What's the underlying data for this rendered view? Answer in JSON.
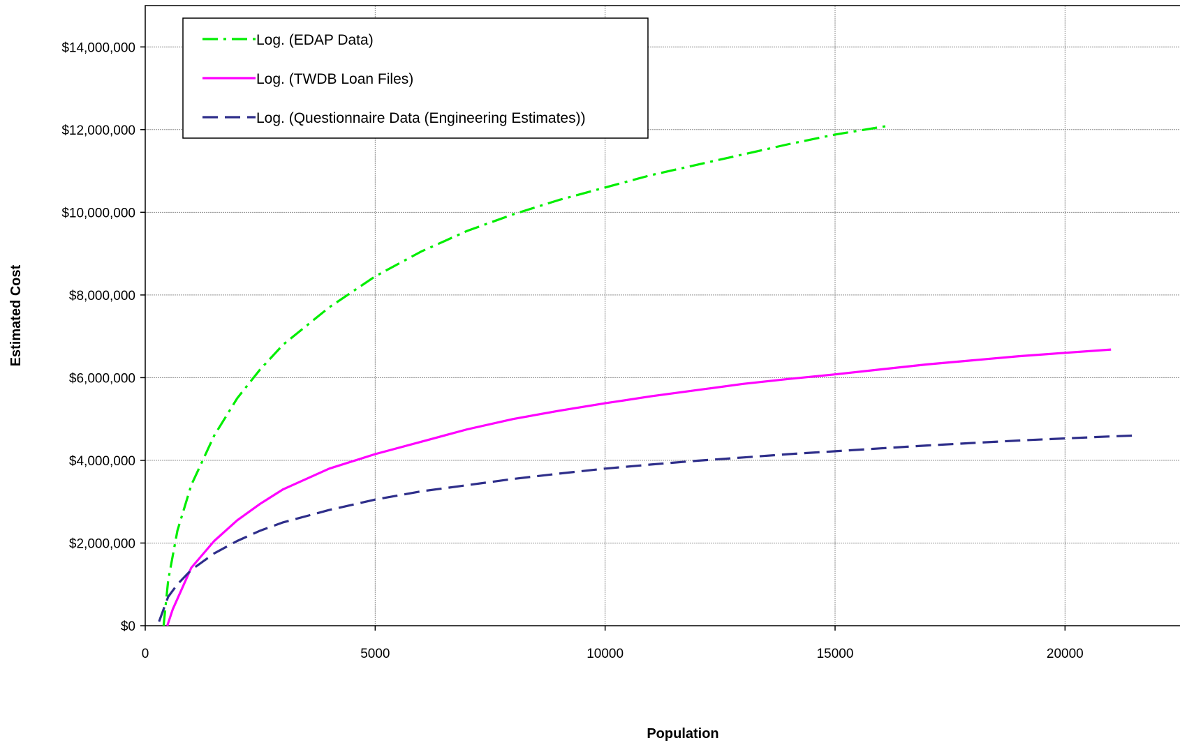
{
  "chart_data": {
    "type": "line",
    "title": "",
    "xlabel": "Population",
    "ylabel": "Estimated Cost",
    "xlim": [
      0,
      22500
    ],
    "ylim": [
      0,
      15000000
    ],
    "x_ticks": [
      0,
      5000,
      10000,
      15000,
      20000
    ],
    "x_tick_labels": [
      "0",
      "5000",
      "10000",
      "15000",
      "20000"
    ],
    "y_ticks": [
      0,
      2000000,
      4000000,
      6000000,
      8000000,
      10000000,
      12000000,
      14000000
    ],
    "y_tick_labels": [
      "$0",
      "$2,000,000",
      "$4,000,000",
      "$6,000,000",
      "$8,000,000",
      "$10,000,000",
      "$12,000,000",
      "$14,000,000"
    ],
    "grid": true,
    "legend_position": "top-left",
    "series": [
      {
        "name": "Log. (EDAP Data)",
        "color": "#00ee00",
        "dash": "dash-dot",
        "x": [
          400,
          500,
          700,
          1000,
          1500,
          2000,
          2500,
          3000,
          4000,
          5000,
          6000,
          7000,
          8000,
          9000,
          10000,
          11000,
          12000,
          13000,
          14000,
          15000,
          16200
        ],
        "y": [
          0,
          1100000,
          2300000,
          3400000,
          4600000,
          5500000,
          6200000,
          6800000,
          7700000,
          8450000,
          9050000,
          9550000,
          9950000,
          10300000,
          10600000,
          10900000,
          11150000,
          11400000,
          11650000,
          11880000,
          12100000
        ]
      },
      {
        "name": "Log. (TWDB Loan Files)",
        "color": "#ff00ff",
        "dash": "solid",
        "x": [
          480,
          600,
          800,
          1000,
          1500,
          2000,
          2500,
          3000,
          4000,
          5000,
          6000,
          7000,
          8000,
          9000,
          10000,
          11000,
          12000,
          13000,
          14000,
          15000,
          16000,
          17000,
          18000,
          19000,
          20000,
          21000
        ],
        "y": [
          0,
          400000,
          900000,
          1400000,
          2050000,
          2550000,
          2950000,
          3300000,
          3800000,
          4150000,
          4450000,
          4750000,
          5000000,
          5200000,
          5380000,
          5550000,
          5700000,
          5850000,
          5970000,
          6080000,
          6200000,
          6320000,
          6420000,
          6520000,
          6600000,
          6680000
        ]
      },
      {
        "name": "Log. (Questionnaire Data (Engineering Estimates))",
        "color": "#2e2e8a",
        "dash": "long-dash",
        "x": [
          300,
          400,
          500,
          700,
          1000,
          1500,
          2000,
          2500,
          3000,
          4000,
          5000,
          6000,
          7000,
          8000,
          9000,
          10000,
          11000,
          12000,
          13000,
          14000,
          15000,
          16000,
          17000,
          18000,
          19000,
          20000,
          21000,
          21500
        ],
        "y": [
          100000,
          400000,
          700000,
          1000000,
          1350000,
          1750000,
          2050000,
          2300000,
          2500000,
          2800000,
          3050000,
          3250000,
          3400000,
          3550000,
          3680000,
          3800000,
          3900000,
          3990000,
          4070000,
          4150000,
          4220000,
          4290000,
          4360000,
          4420000,
          4480000,
          4530000,
          4580000,
          4600000
        ]
      }
    ]
  }
}
